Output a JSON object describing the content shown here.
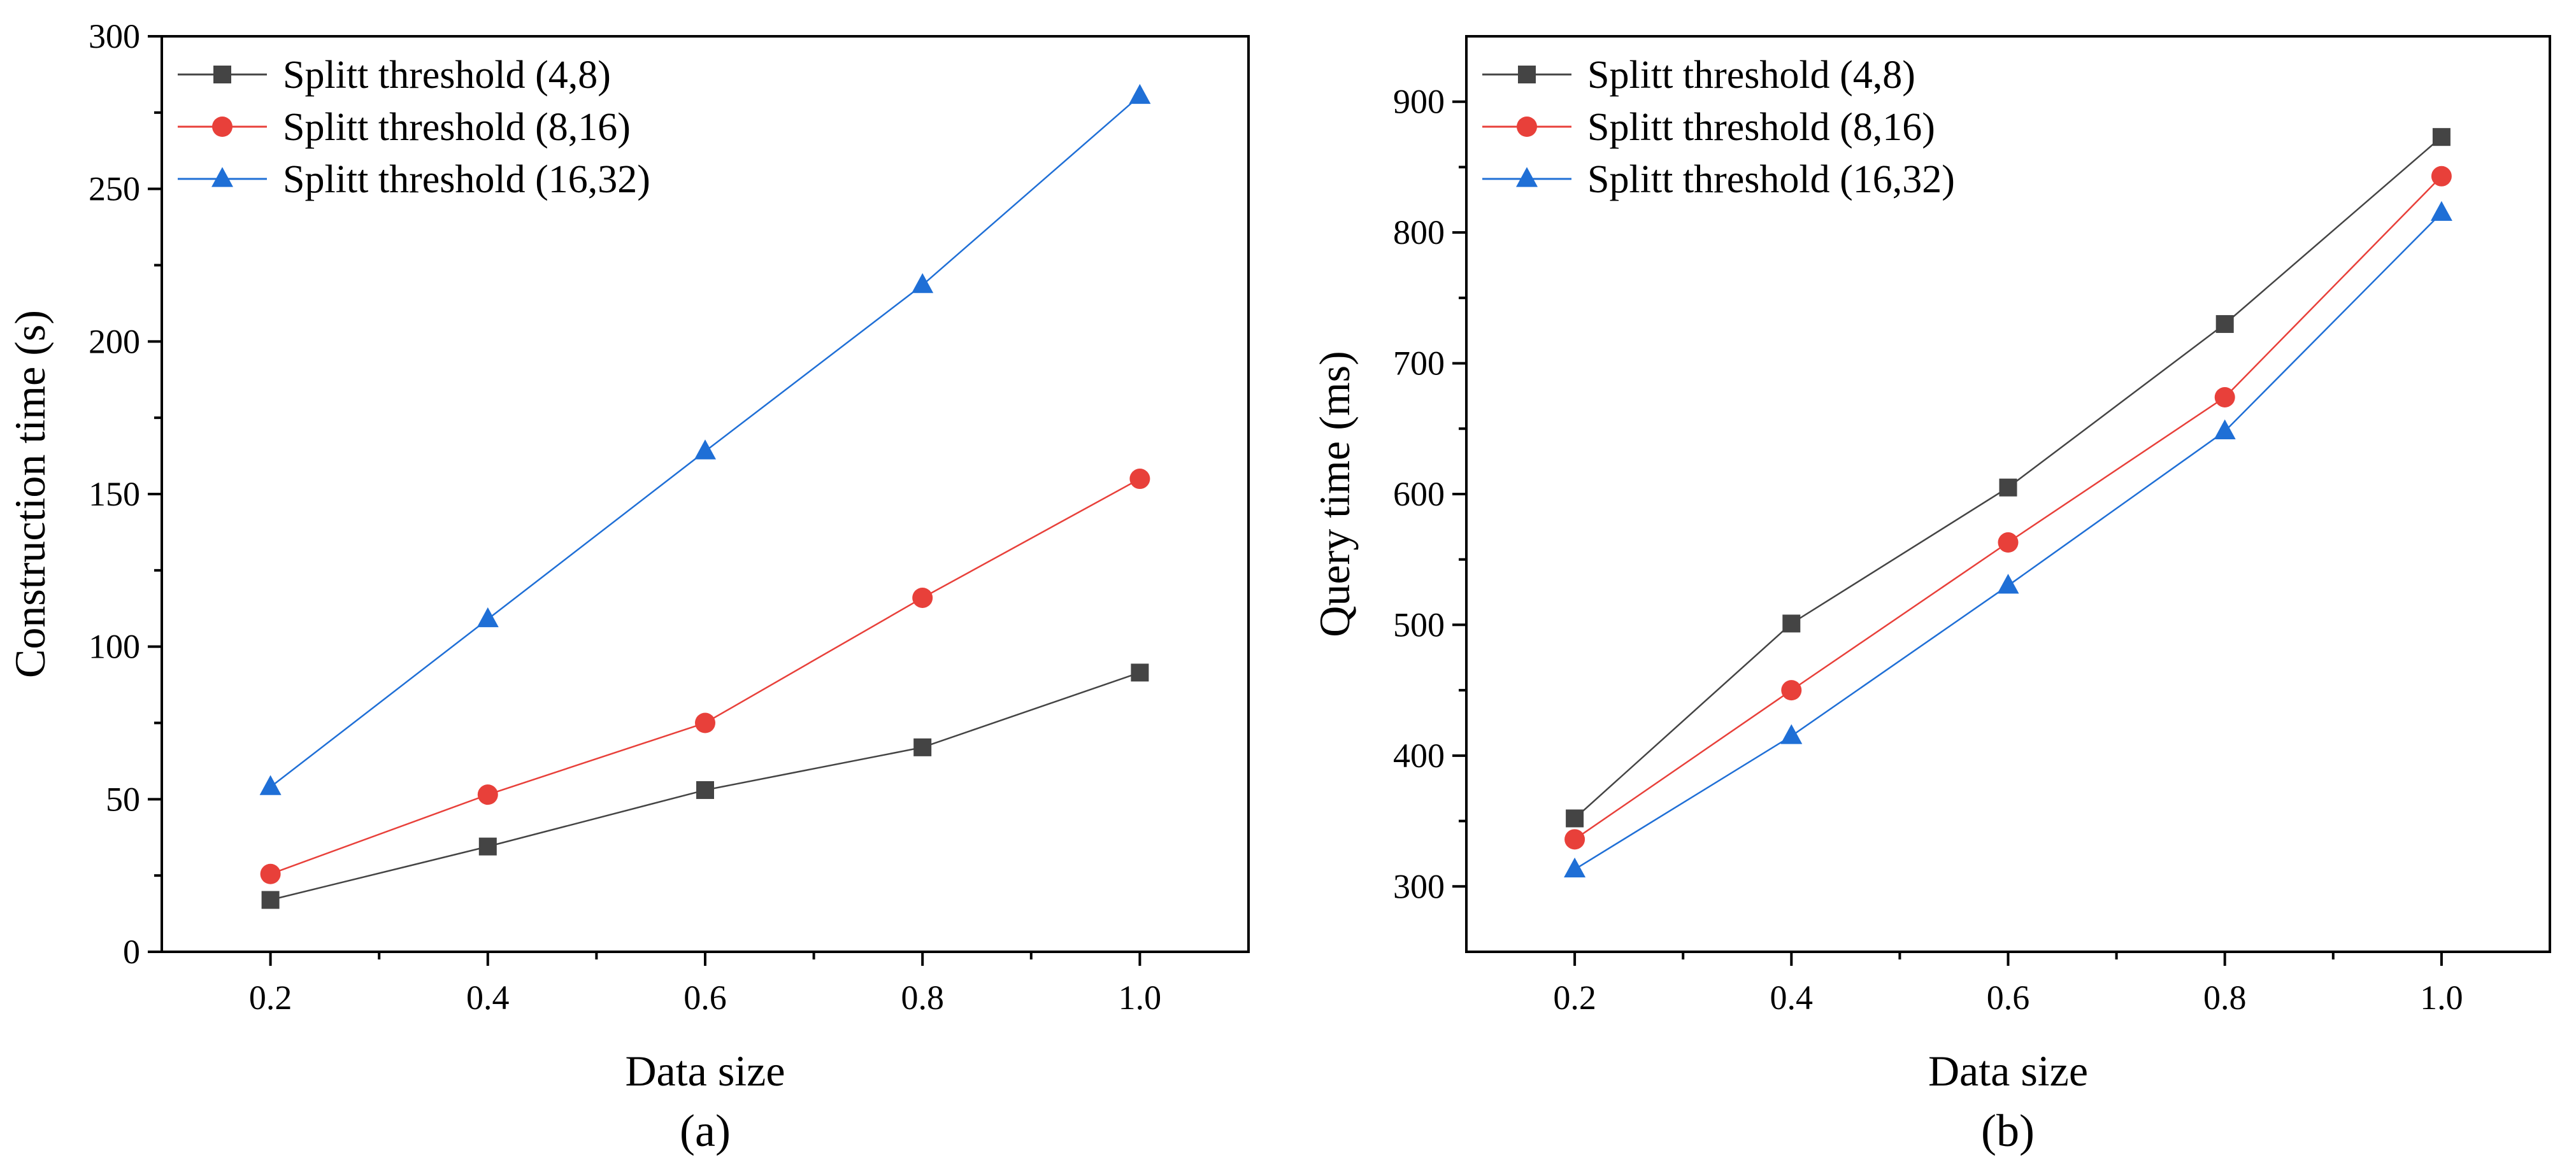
{
  "chart_data": [
    {
      "type": "line",
      "panel_label": "(a)",
      "xlabel": "Data size",
      "ylabel": "Construction time (s)",
      "x": [
        0.2,
        0.4,
        0.6,
        0.8,
        1.0
      ],
      "x_tick_labels": [
        "0.2",
        "0.4",
        "0.6",
        "0.8",
        "1.0"
      ],
      "xlim": [
        0.1,
        1.1
      ],
      "ylim": [
        0,
        300
      ],
      "y_ticks": [
        0,
        50,
        100,
        150,
        200,
        250,
        300
      ],
      "y_tick_labels": [
        "0",
        "50",
        "100",
        "150",
        "200",
        "250",
        "300"
      ],
      "grid": false,
      "legend_position": "top-left",
      "series": [
        {
          "name": "Splitt threshold (4,8)",
          "values": [
            17,
            34.5,
            53,
            67,
            91.5
          ],
          "color": "#444444",
          "marker": "square"
        },
        {
          "name": "Splitt threshold (8,16)",
          "values": [
            25.5,
            51.5,
            75,
            116,
            155
          ],
          "color": "#e8403a",
          "marker": "circle"
        },
        {
          "name": "Splitt threshold (16,32)",
          "values": [
            54,
            109,
            164,
            218.5,
            280.5
          ],
          "color": "#1f6fd6",
          "marker": "triangle"
        }
      ]
    },
    {
      "type": "line",
      "panel_label": "(b)",
      "xlabel": "Data size",
      "ylabel": "Query time (ms)",
      "x": [
        0.2,
        0.4,
        0.6,
        0.8,
        1.0
      ],
      "x_tick_labels": [
        "0.2",
        "0.4",
        "0.6",
        "0.8",
        "1.0"
      ],
      "xlim": [
        0.1,
        1.1
      ],
      "ylim": [
        250,
        950
      ],
      "y_ticks": [
        300,
        400,
        500,
        600,
        700,
        800,
        900
      ],
      "y_tick_labels": [
        "300",
        "400",
        "500",
        "600",
        "700",
        "800",
        "900"
      ],
      "grid": false,
      "legend_position": "top-left",
      "series": [
        {
          "name": "Splitt threshold (4,8)",
          "values": [
            352,
            501,
            605,
            730,
            873
          ],
          "color": "#444444",
          "marker": "square"
        },
        {
          "name": "Splitt threshold (8,16)",
          "values": [
            336,
            450,
            563,
            674,
            843
          ],
          "color": "#e8403a",
          "marker": "circle"
        },
        {
          "name": "Splitt threshold (16,32)",
          "values": [
            313,
            415,
            530,
            648,
            815
          ],
          "color": "#1f6fd6",
          "marker": "triangle"
        }
      ]
    }
  ]
}
